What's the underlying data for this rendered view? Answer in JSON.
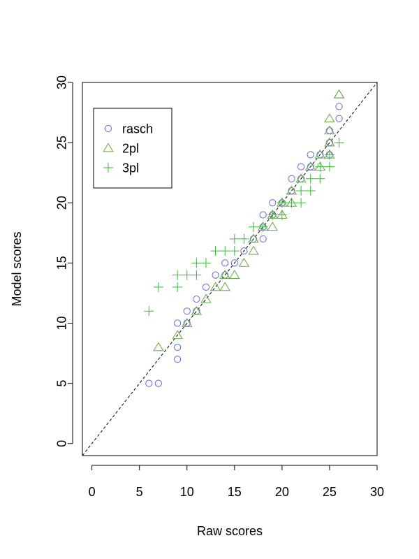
{
  "chart_data": {
    "type": "scatter",
    "xlabel": "Raw scores",
    "ylabel": "Model scores",
    "xlim": [
      -1,
      30
    ],
    "ylim": [
      -1,
      30
    ],
    "xticks": [
      0,
      5,
      10,
      15,
      20,
      25,
      30
    ],
    "yticks": [
      0,
      5,
      10,
      15,
      20,
      25,
      30
    ],
    "reference_line": "y = x (dashed)",
    "legend_position": "top-left",
    "series": [
      {
        "name": "rasch",
        "marker": "circle",
        "color": "#6666dd",
        "points": [
          [
            6,
            5
          ],
          [
            7,
            5
          ],
          [
            9,
            7
          ],
          [
            9,
            8
          ],
          [
            9,
            10
          ],
          [
            10,
            10
          ],
          [
            10,
            11
          ],
          [
            11,
            11
          ],
          [
            11,
            12
          ],
          [
            12,
            13
          ],
          [
            13,
            14
          ],
          [
            14,
            14
          ],
          [
            14,
            15
          ],
          [
            15,
            15
          ],
          [
            16,
            16
          ],
          [
            17,
            17
          ],
          [
            18,
            17
          ],
          [
            18,
            18
          ],
          [
            18,
            19
          ],
          [
            19,
            19
          ],
          [
            19,
            20
          ],
          [
            20,
            20
          ],
          [
            21,
            21
          ],
          [
            21,
            22
          ],
          [
            22,
            22
          ],
          [
            22,
            23
          ],
          [
            23,
            23
          ],
          [
            23,
            24
          ],
          [
            24,
            24
          ],
          [
            25,
            24
          ],
          [
            25,
            25
          ],
          [
            25,
            26
          ],
          [
            26,
            27
          ],
          [
            26,
            28
          ]
        ]
      },
      {
        "name": "2pl",
        "marker": "triangle",
        "color": "#66aa44",
        "points": [
          [
            7,
            8
          ],
          [
            9,
            9
          ],
          [
            10,
            10
          ],
          [
            11,
            11
          ],
          [
            12,
            12
          ],
          [
            13,
            13
          ],
          [
            14,
            13
          ],
          [
            14,
            14
          ],
          [
            15,
            14
          ],
          [
            16,
            15
          ],
          [
            17,
            16
          ],
          [
            17,
            17
          ],
          [
            18,
            18
          ],
          [
            19,
            18
          ],
          [
            19,
            19
          ],
          [
            20,
            19
          ],
          [
            20,
            20
          ],
          [
            21,
            20
          ],
          [
            21,
            21
          ],
          [
            22,
            22
          ],
          [
            23,
            23
          ],
          [
            24,
            23
          ],
          [
            24,
            24
          ],
          [
            25,
            24
          ],
          [
            25,
            25
          ],
          [
            25,
            26
          ],
          [
            25,
            27
          ],
          [
            26,
            29
          ],
          [
            26,
            29
          ]
        ]
      },
      {
        "name": "3pl",
        "marker": "plus",
        "color": "#33bb33",
        "points": [
          [
            6,
            11
          ],
          [
            7,
            13
          ],
          [
            9,
            13
          ],
          [
            9,
            14
          ],
          [
            10,
            14
          ],
          [
            11,
            14
          ],
          [
            11,
            15
          ],
          [
            12,
            15
          ],
          [
            13,
            16
          ],
          [
            14,
            16
          ],
          [
            15,
            16
          ],
          [
            15,
            17
          ],
          [
            16,
            17
          ],
          [
            17,
            18
          ],
          [
            18,
            18
          ],
          [
            19,
            19
          ],
          [
            20,
            19
          ],
          [
            20,
            20
          ],
          [
            21,
            20
          ],
          [
            22,
            20
          ],
          [
            22,
            21
          ],
          [
            23,
            21
          ],
          [
            23,
            22
          ],
          [
            24,
            22
          ],
          [
            24,
            23
          ],
          [
            25,
            23
          ],
          [
            25,
            24
          ],
          [
            26,
            25
          ]
        ]
      }
    ]
  }
}
